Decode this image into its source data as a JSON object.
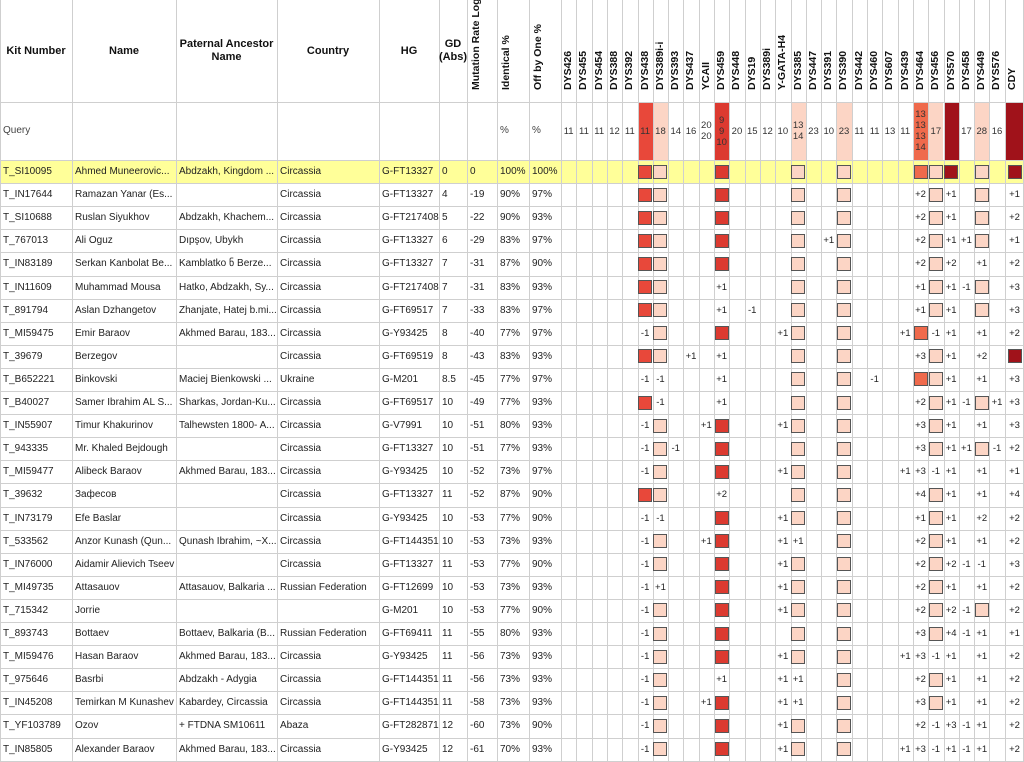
{
  "columns": {
    "kit": "Kit Number",
    "name": "Name",
    "ancestor": "Paternal Ancestor Name",
    "country": "Country",
    "hg": "HG",
    "gd": "GD (Abs)",
    "rate": "Mutation Rate Log Sum",
    "identical": "Identical %",
    "off_by_one": "Off by One %"
  },
  "query": {
    "kit": "Query",
    "identical": "%",
    "off_by_one": "%"
  },
  "highlighted_row": 0,
  "markers": [
    {
      "name": "DYS426",
      "query": "11"
    },
    {
      "name": "DYS455",
      "query": "11"
    },
    {
      "name": "DYS454",
      "query": "11"
    },
    {
      "name": "DYS388",
      "query": "12"
    },
    {
      "name": "DYS392",
      "query": "11"
    },
    {
      "name": "DYS438",
      "query": "11",
      "color": "#e8483a"
    },
    {
      "name": "DYS389i-i",
      "query": "18",
      "color": "#fcd5c5"
    },
    {
      "name": "DYS393",
      "query": "14"
    },
    {
      "name": "DYS437",
      "query": "16"
    },
    {
      "name": "YCAII",
      "query": [
        "20",
        "20"
      ]
    },
    {
      "name": "DYS459",
      "query": [
        "9",
        "9",
        "10"
      ],
      "color": "#dc3a30"
    },
    {
      "name": "DYS448",
      "query": "20"
    },
    {
      "name": "DYS19",
      "query": "15"
    },
    {
      "name": "DYS389i",
      "query": "12"
    },
    {
      "name": "Y-GATA-H4",
      "query": "10"
    },
    {
      "name": "DYS385",
      "query": [
        "13",
        "14"
      ],
      "color": "#fcd5c5"
    },
    {
      "name": "DYS447",
      "query": "23"
    },
    {
      "name": "DYS391",
      "query": "10"
    },
    {
      "name": "DYS390",
      "query": "23",
      "color": "#fcd5c5"
    },
    {
      "name": "DYS442",
      "query": "11"
    },
    {
      "name": "DYS460",
      "query": "11"
    },
    {
      "name": "DYS607",
      "query": "13"
    },
    {
      "name": "DYS439",
      "query": "11"
    },
    {
      "name": "DYS464",
      "query": [
        "13",
        "13",
        "13",
        "14"
      ],
      "color": "#ef6a4c"
    },
    {
      "name": "DYS456",
      "query": "17",
      "color": "#fcd5c5"
    },
    {
      "name": "DYS570",
      "query": null,
      "color": "#a0121a"
    },
    {
      "name": "DYS458",
      "query": "17"
    },
    {
      "name": "DYS449",
      "query": "28",
      "color": "#fcd5c5"
    },
    {
      "name": "DYS576",
      "query": "16"
    },
    {
      "name": "CDY",
      "query": null,
      "color": "#a0121a"
    }
  ],
  "rows": [
    {
      "kit": "T_SI10095",
      "name": "Ahmed Muneerovic...",
      "ancestor": "Abdzakh, Kingdom ...",
      "country": "Circassia",
      "hg": "G-FT13327",
      "gd": "0",
      "rate": "0",
      "identical": "100%",
      "off_by_one": "100%",
      "diffs": {}
    },
    {
      "kit": "T_IN17644",
      "name": "Ramazan Yanar (Es...",
      "country": "Circassia",
      "hg": "G-FT13327",
      "gd": "4",
      "rate": "-19",
      "identical": "90%",
      "off_by_one": "97%",
      "diffs": {
        "DYS464": "+2",
        "DYS570": "+1",
        "CDY": "+1"
      }
    },
    {
      "kit": "T_SI10688",
      "name": "Ruslan Siyukhov",
      "ancestor": "Abdzakh, Khachem...",
      "country": "Circassia",
      "hg": "G-FT217408",
      "gd": "5",
      "rate": "-22",
      "identical": "90%",
      "off_by_one": "93%",
      "diffs": {
        "DYS464": "+2",
        "DYS570": "+1",
        "CDY": "+2"
      }
    },
    {
      "kit": "T_767013",
      "name": "Ali Oguz",
      "ancestor": "Dıpşov, Ubykh",
      "country": "Circassia",
      "hg": "G-FT13327",
      "gd": "6",
      "rate": "-29",
      "identical": "83%",
      "off_by_one": "97%",
      "diffs": {
        "DYS391": "+1",
        "DYS464": "+2",
        "DYS570": "+1",
        "DYS458": "+1",
        "CDY": "+1"
      }
    },
    {
      "kit": "T_IN83189",
      "name": "Serkan Kanbolat Be...",
      "ancestor": "Kamblatko ნ Berze...",
      "country": "Circassia",
      "hg": "G-FT13327",
      "gd": "7",
      "rate": "-31",
      "identical": "87%",
      "off_by_one": "90%",
      "diffs": {
        "DYS464": "+2",
        "DYS570": "+2",
        "DYS449": "+1",
        "CDY": "+2"
      }
    },
    {
      "kit": "T_IN11609",
      "name": "Muhammad Mousa",
      "ancestor": "Hatko, Abdzakh, Sy...",
      "country": "Circassia",
      "hg": "G-FT217408",
      "gd": "7",
      "rate": "-31",
      "identical": "83%",
      "off_by_one": "93%",
      "diffs": {
        "DYS459": "+1",
        "DYS464": "+1",
        "DYS570": "+1",
        "DYS458": "-1",
        "CDY": "+3"
      }
    },
    {
      "kit": "T_891794",
      "name": "Aslan Dzhangetov",
      "ancestor": "Zhanjate, Hatej b.mi...",
      "country": "Circassia",
      "hg": "G-FT69517",
      "gd": "7",
      "rate": "-33",
      "identical": "83%",
      "off_by_one": "97%",
      "diffs": {
        "DYS459": "+1",
        "DYS19": "-1",
        "DYS464": "+1",
        "DYS570": "+1",
        "CDY": "+3"
      }
    },
    {
      "kit": "T_MI59475",
      "name": "Emir Baraov",
      "ancestor": "Akhmed Barau, 183...",
      "country": "Circassia",
      "hg": "G-Y93425",
      "gd": "8",
      "rate": "-40",
      "identical": "77%",
      "off_by_one": "97%",
      "diffs": {
        "DYS438": "-1",
        "Y-GATA-H4": "+1",
        "DYS439": "+1",
        "DYS456": "-1",
        "DYS570": "+1",
        "DYS449": "+1",
        "CDY": "+2"
      }
    },
    {
      "kit": "T_39679",
      "name": "Berzegov",
      "country": "Circassia",
      "hg": "G-FT69519",
      "gd": "8",
      "rate": "-43",
      "identical": "83%",
      "off_by_one": "93%",
      "diffs": {
        "DYS437": "+1",
        "DYS459": "+1",
        "DYS464": "+3",
        "DYS570": "+1",
        "DYS449": "+2"
      }
    },
    {
      "kit": "T_B652221",
      "name": "Binkovski",
      "ancestor": "Maciej Bienkowski ...",
      "country": "Ukraine",
      "hg": "G-M201",
      "gd": "8.5",
      "rate": "-45",
      "identical": "77%",
      "off_by_one": "97%",
      "diffs": {
        "DYS438": "-1",
        "DYS389i-i": "-1",
        "DYS459": "+1",
        "DYS460": "-1",
        "DYS570": "+1",
        "DYS449": "+1",
        "CDY": "+3"
      }
    },
    {
      "kit": "T_B40027",
      "name": "Samer Ibrahim AL S...",
      "ancestor": "Sharkas, Jordan-Ku...",
      "country": "Circassia",
      "hg": "G-FT69517",
      "gd": "10",
      "rate": "-49",
      "identical": "77%",
      "off_by_one": "93%",
      "diffs": {
        "DYS389i-i": "-1",
        "DYS459": "+1",
        "DYS464": "+2",
        "DYS570": "+1",
        "DYS458": "-1",
        "DYS576": "+1",
        "CDY": "+3"
      }
    },
    {
      "kit": "T_IN55907",
      "name": "Timur Khakurinov",
      "ancestor": "Talhewsten 1800- A...",
      "country": "Circassia",
      "hg": "G-V7991",
      "gd": "10",
      "rate": "-51",
      "identical": "80%",
      "off_by_one": "93%",
      "diffs": {
        "DYS438": "-1",
        "YCAII": "+1",
        "Y-GATA-H4": "+1",
        "DYS464": "+3",
        "DYS570": "+1",
        "DYS449": "+1",
        "CDY": "+3"
      }
    },
    {
      "kit": "T_943335",
      "name": "Mr. Khaled Bejdough",
      "country": "Circassia",
      "hg": "G-FT13327",
      "gd": "10",
      "rate": "-51",
      "identical": "77%",
      "off_by_one": "93%",
      "diffs": {
        "DYS438": "-1",
        "DYS393": "-1",
        "DYS464": "+3",
        "DYS570": "+1",
        "DYS458": "+1",
        "DYS576": "-1",
        "CDY": "+2"
      }
    },
    {
      "kit": "T_MI59477",
      "name": "Alibeck Baraov",
      "ancestor": "Akhmed Barau, 183...",
      "country": "Circassia",
      "hg": "G-Y93425",
      "gd": "10",
      "rate": "-52",
      "identical": "73%",
      "off_by_one": "97%",
      "diffs": {
        "DYS438": "-1",
        "Y-GATA-H4": "+1",
        "DYS439": "+1",
        "DYS464": "+3",
        "DYS456": "-1",
        "DYS570": "+1",
        "DYS449": "+1",
        "CDY": "+1"
      }
    },
    {
      "kit": "T_39632",
      "name": "Зафесов",
      "country": "Circassia",
      "hg": "G-FT13327",
      "gd": "11",
      "rate": "-52",
      "identical": "87%",
      "off_by_one": "90%",
      "diffs": {
        "DYS459": "+2",
        "DYS464": "+4",
        "DYS570": "+1",
        "DYS449": "+1",
        "CDY": "+4"
      }
    },
    {
      "kit": "T_IN73179",
      "name": "Efe Baslar",
      "country": "Circassia",
      "hg": "G-Y93425",
      "gd": "10",
      "rate": "-53",
      "identical": "77%",
      "off_by_one": "90%",
      "diffs": {
        "DYS438": "-1",
        "DYS389i-i": "-1",
        "Y-GATA-H4": "+1",
        "DYS464": "+1",
        "DYS570": "+1",
        "DYS449": "+2",
        "CDY": "+2"
      }
    },
    {
      "kit": "T_533562",
      "name": "Anzor Kunash (Qun...",
      "ancestor": "Qunash Ibrahim, ~X...",
      "country": "Circassia",
      "hg": "G-FT144351",
      "gd": "10",
      "rate": "-53",
      "identical": "73%",
      "off_by_one": "93%",
      "diffs": {
        "DYS438": "-1",
        "YCAII": "+1",
        "Y-GATA-H4": "+1",
        "DYS385": "+1",
        "DYS464": "+2",
        "DYS570": "+1",
        "DYS449": "+1",
        "CDY": "+2"
      }
    },
    {
      "kit": "T_IN76000",
      "name": "Aidamir Alievich Tseev",
      "country": "Circassia",
      "hg": "G-FT13327",
      "gd": "11",
      "rate": "-53",
      "identical": "77%",
      "off_by_one": "90%",
      "diffs": {
        "DYS438": "-1",
        "Y-GATA-H4": "+1",
        "DYS464": "+2",
        "DYS570": "+2",
        "DYS458": "-1",
        "DYS449": "-1",
        "CDY": "+3"
      }
    },
    {
      "kit": "T_MI49735",
      "name": "Attasauov",
      "ancestor": "Attasauov, Balkaria ...",
      "country": "Russian Federation",
      "hg": "G-FT12699",
      "gd": "10",
      "rate": "-53",
      "identical": "73%",
      "off_by_one": "93%",
      "diffs": {
        "DYS438": "-1",
        "DYS389i-i": "+1",
        "Y-GATA-H4": "+1",
        "DYS464": "+2",
        "DYS570": "+1",
        "DYS449": "+1",
        "CDY": "+2"
      }
    },
    {
      "kit": "T_715342",
      "name": "Jorrie",
      "hg": "G-M201",
      "gd": "10",
      "rate": "-53",
      "identical": "77%",
      "off_by_one": "90%",
      "diffs": {
        "DYS438": "-1",
        "Y-GATA-H4": "+1",
        "DYS464": "+2",
        "DYS570": "+2",
        "DYS458": "-1",
        "CDY": "+2"
      }
    },
    {
      "kit": "T_893743",
      "name": "Bottaev",
      "ancestor": "Bottaev, Balkaria (B...",
      "country": "Russian Federation",
      "hg": "G-FT69411",
      "gd": "11",
      "rate": "-55",
      "identical": "80%",
      "off_by_one": "93%",
      "diffs": {
        "DYS438": "-1",
        "DYS464": "+3",
        "DYS570": "+4",
        "DYS458": "-1",
        "DYS449": "+1",
        "CDY": "+1"
      }
    },
    {
      "kit": "T_MI59476",
      "name": "Hasan Baraov",
      "ancestor": "Akhmed Barau, 183...",
      "country": "Circassia",
      "hg": "G-Y93425",
      "gd": "11",
      "rate": "-56",
      "identical": "73%",
      "off_by_one": "93%",
      "diffs": {
        "DYS438": "-1",
        "Y-GATA-H4": "+1",
        "DYS439": "+1",
        "DYS464": "+3",
        "DYS456": "-1",
        "DYS570": "+1",
        "DYS449": "+1",
        "CDY": "+2"
      }
    },
    {
      "kit": "T_975646",
      "name": "Basrbi",
      "ancestor": "Abdzakh - Adygia",
      "country": "Circassia",
      "hg": "G-FT144351",
      "gd": "11",
      "rate": "-56",
      "identical": "73%",
      "off_by_one": "93%",
      "diffs": {
        "DYS438": "-1",
        "DYS459": "+1",
        "Y-GATA-H4": "+1",
        "DYS385": "+1",
        "DYS464": "+2",
        "DYS570": "+1",
        "DYS449": "+1",
        "CDY": "+2"
      }
    },
    {
      "kit": "T_IN45208",
      "name": "Temirkan M Kunashev",
      "ancestor": "Kabardey, Circassia",
      "country": "Circassia",
      "hg": "G-FT144351",
      "gd": "11",
      "rate": "-58",
      "identical": "73%",
      "off_by_one": "93%",
      "diffs": {
        "DYS438": "-1",
        "YCAII": "+1",
        "Y-GATA-H4": "+1",
        "DYS385": "+1",
        "DYS464": "+3",
        "DYS570": "+1",
        "DYS449": "+1",
        "CDY": "+2"
      }
    },
    {
      "kit": "T_YF103789",
      "name": "Ozov",
      "ancestor": "+ FTDNA SM10611",
      "country": "Abaza",
      "hg": "G-FT282871",
      "gd": "12",
      "rate": "-60",
      "identical": "73%",
      "off_by_one": "90%",
      "diffs": {
        "DYS438": "-1",
        "Y-GATA-H4": "+1",
        "DYS464": "+2",
        "DYS456": "-1",
        "DYS570": "+3",
        "DYS458": "-1",
        "DYS449": "+1",
        "CDY": "+2"
      }
    },
    {
      "kit": "T_IN85805",
      "name": "Alexander Baraov",
      "ancestor": "Akhmed Barau, 183...",
      "country": "Circassia",
      "hg": "G-Y93425",
      "gd": "12",
      "rate": "-61",
      "identical": "70%",
      "off_by_one": "93%",
      "diffs": {
        "DYS438": "-1",
        "Y-GATA-H4": "+1",
        "DYS439": "+1",
        "DYS464": "+3",
        "DYS456": "-1",
        "DYS570": "+1",
        "DYS458": "-1",
        "DYS449": "+1",
        "CDY": "+2"
      }
    }
  ]
}
